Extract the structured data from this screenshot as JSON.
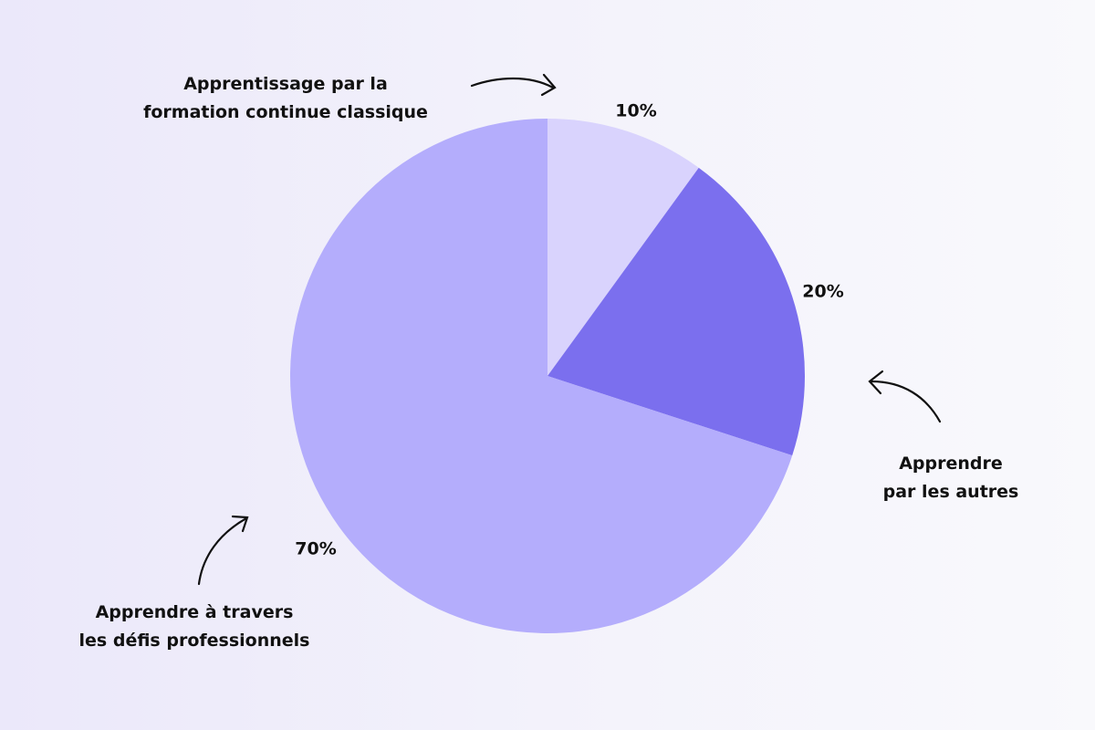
{
  "chart_data": {
    "type": "pie",
    "categories": [
      "Apprentissage par la\nformation continue classique",
      "Apprendre\npar les autres",
      "Apprendre à travers\nles défis professionnels"
    ],
    "values": [
      10,
      20,
      70
    ],
    "value_labels": [
      "10%",
      "20%",
      "70%"
    ],
    "colors": [
      "#d9d3fd",
      "#7b6fee",
      "#b4adfc"
    ]
  }
}
